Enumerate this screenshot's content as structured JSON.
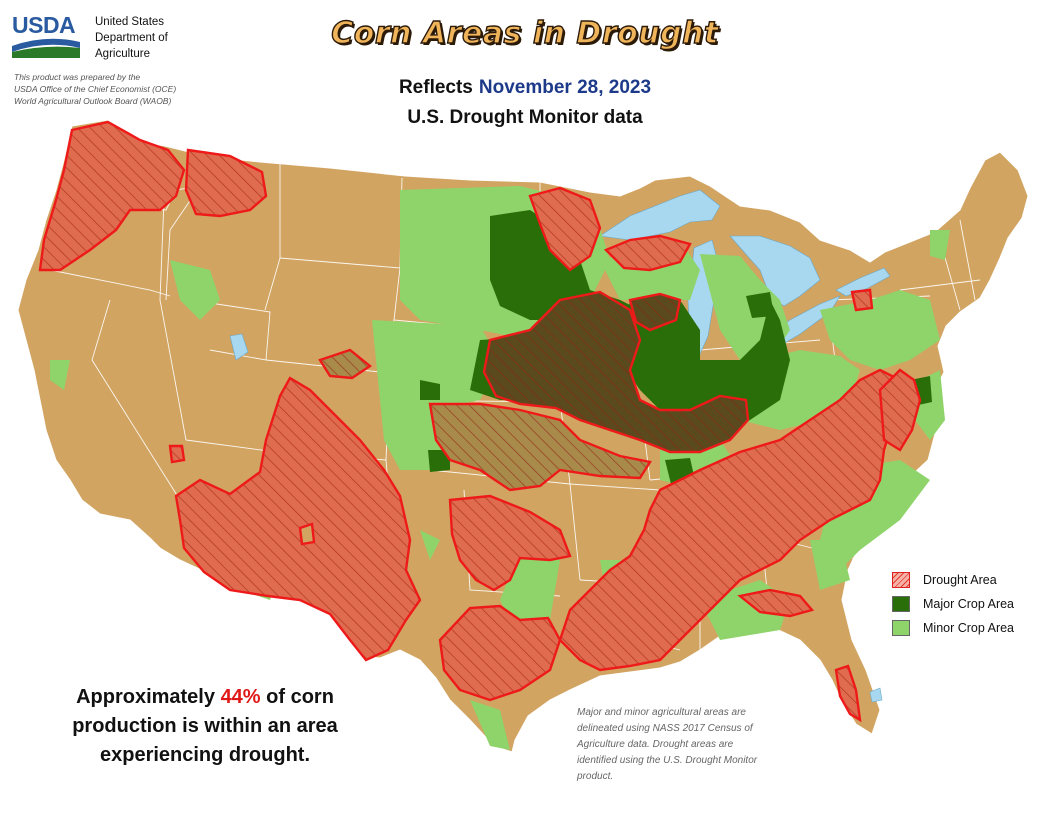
{
  "header": {
    "logo_text": "USDA",
    "agency_lines": [
      "United States",
      "Department of",
      "Agriculture"
    ],
    "prepared_lines": [
      "This product was prepared by the",
      "USDA Office of the Chief Economist (OCE)",
      "World Agricultural Outlook Board (WAOB)"
    ]
  },
  "title": "Corn Areas in Drought",
  "subtitle": {
    "prefix": "Reflects",
    "date": "November 28, 2023",
    "line2": "U.S. Drought Monitor data"
  },
  "legend": {
    "items": [
      {
        "label": "Drought Area",
        "color": "#e53a2a"
      },
      {
        "label": "Major Crop Area",
        "color": "#2a6e0a"
      },
      {
        "label": "Minor Crop Area",
        "color": "#8fd46a"
      }
    ]
  },
  "statement": {
    "before": "Approximately",
    "percent": "44%",
    "after": "of corn production is within an area experiencing drought."
  },
  "footnote_lines": [
    "Major and minor agricultural areas are",
    "delineated using NASS 2017 Census of",
    "Agriculture data.  Drought areas are",
    "identified using the U.S. Drought Monitor",
    "product."
  ],
  "colors": {
    "land": "#d2a462",
    "water": "#a8d8f0",
    "drought_outline": "#ee1a1a",
    "drought_fill": "#e07050",
    "major_crop": "#2a6e0a",
    "minor_crop": "#8fd46a",
    "title_fill": "#f0b45a",
    "date_text": "#1d3a8a",
    "percent_text": "#e01818"
  }
}
